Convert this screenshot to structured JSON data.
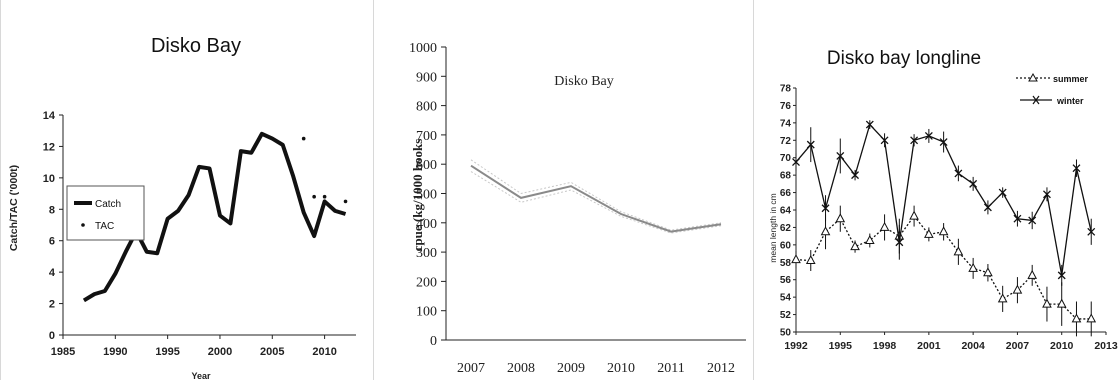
{
  "chart_data": [
    {
      "type": "line",
      "title": "Disko Bay",
      "xlabel": "Year",
      "ylabel": "Catch/TAC ('000t)",
      "xlim": [
        1985,
        2013
      ],
      "ylim": [
        0,
        14
      ],
      "xticks": [
        1985,
        1990,
        1995,
        2000,
        2005,
        2010
      ],
      "yticks": [
        0,
        2,
        4,
        6,
        8,
        10,
        12,
        14
      ],
      "legend": "top-left",
      "series": [
        {
          "name": "Catch",
          "style": "thick-line",
          "color": "#111111",
          "x": [
            1987,
            1988,
            1989,
            1990,
            1991,
            1992,
            1993,
            1994,
            1995,
            1996,
            1997,
            1998,
            1999,
            2000,
            2001,
            2002,
            2003,
            2004,
            2005,
            2006,
            2007,
            2008,
            2009,
            2010,
            2011,
            2012
          ],
          "y": [
            2.2,
            2.6,
            2.8,
            3.9,
            5.3,
            6.6,
            5.3,
            5.2,
            7.4,
            7.9,
            8.9,
            10.7,
            10.6,
            7.6,
            7.1,
            11.7,
            11.6,
            12.8,
            12.5,
            12.1,
            10.1,
            7.8,
            6.3,
            8.5,
            7.9,
            7.7
          ],
          "data_labels": []
        },
        {
          "name": "TAC",
          "style": "dots",
          "color": "#111111",
          "x": [
            2008,
            2009,
            2010,
            2012
          ],
          "y": [
            12.5,
            8.8,
            8.8,
            8.5
          ]
        }
      ]
    },
    {
      "type": "line",
      "title": "Disko Bay",
      "xlabel": "",
      "ylabel": "cpue (kg/1000 hooks",
      "categories": [
        "2007",
        "2008",
        "2009",
        "2010",
        "2011",
        "2012"
      ],
      "ylim": [
        0,
        1000
      ],
      "yticks": [
        0,
        100,
        200,
        300,
        400,
        500,
        600,
        700,
        800,
        900,
        1000
      ],
      "series": [
        {
          "name": "",
          "color": "#8a8a8a",
          "band_color": "#c8c8c8",
          "values": [
            595,
            485,
            525,
            430,
            370,
            395
          ],
          "upper": [
            615,
            500,
            538,
            438,
            375,
            400
          ],
          "lower": [
            575,
            470,
            512,
            422,
            365,
            390
          ]
        }
      ]
    },
    {
      "type": "line",
      "title": "Disko bay longline",
      "xlabel": "",
      "ylabel": "mean length in cm",
      "xlim": [
        1992,
        2013
      ],
      "ylim": [
        50,
        78
      ],
      "xticks": [
        1992,
        1995,
        1998,
        2001,
        2004,
        2007,
        2010,
        2013
      ],
      "yticks": [
        50,
        52,
        54,
        56,
        58,
        60,
        62,
        64,
        66,
        68,
        70,
        72,
        74,
        76,
        78
      ],
      "legend": "top-right",
      "series": [
        {
          "name": "summer",
          "style": "dotted-triangle",
          "color": "#111111",
          "x": [
            1992,
            1993,
            1994,
            1995,
            1996,
            1997,
            1998,
            1999,
            2000,
            2001,
            2002,
            2003,
            2004,
            2005,
            2006,
            2007,
            2008,
            2009,
            2010,
            2011,
            2012
          ],
          "y": [
            58.3,
            58.2,
            61.5,
            63.0,
            59.8,
            60.5,
            62.0,
            61.0,
            63.3,
            61.2,
            61.5,
            59.2,
            57.3,
            56.8,
            53.8,
            54.8,
            56.5,
            53.2,
            53.2,
            51.5,
            51.5
          ],
          "err": [
            1.0,
            1.2,
            2.0,
            1.5,
            0.7,
            0.8,
            1.5,
            2.0,
            1.2,
            0.8,
            1.0,
            1.5,
            1.2,
            1.0,
            1.5,
            1.5,
            1.2,
            2.0,
            2.5,
            2.0,
            2.0
          ]
        },
        {
          "name": "winter",
          "style": "solid-cross",
          "color": "#111111",
          "x": [
            1992,
            1993,
            1994,
            1995,
            1996,
            1997,
            1998,
            1999,
            2000,
            2001,
            2002,
            2003,
            2004,
            2005,
            2006,
            2007,
            2008,
            2009,
            2010,
            2011,
            2012
          ],
          "y": [
            69.5,
            71.5,
            64.2,
            70.2,
            68.0,
            73.8,
            72.0,
            60.3,
            72.0,
            72.5,
            71.8,
            68.2,
            67.0,
            64.3,
            66.0,
            63.0,
            62.8,
            65.8,
            56.5,
            68.8,
            61.5
          ],
          "err": [
            1.0,
            2.0,
            1.5,
            2.0,
            0.6,
            0.5,
            0.8,
            2.0,
            0.7,
            0.8,
            1.2,
            0.9,
            0.8,
            0.8,
            0.6,
            0.9,
            1.0,
            0.8,
            1.2,
            1.0,
            1.5
          ]
        }
      ]
    }
  ]
}
